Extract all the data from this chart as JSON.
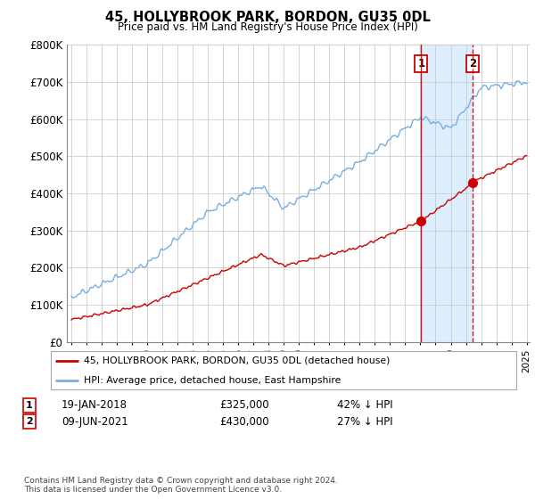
{
  "title": "45, HOLLYBROOK PARK, BORDON, GU35 0DL",
  "subtitle": "Price paid vs. HM Land Registry's House Price Index (HPI)",
  "ylim": [
    0,
    800000
  ],
  "yticks": [
    0,
    100000,
    200000,
    300000,
    400000,
    500000,
    600000,
    700000,
    800000
  ],
  "ytick_labels": [
    "£0",
    "£100K",
    "£200K",
    "£300K",
    "£400K",
    "£500K",
    "£600K",
    "£700K",
    "£800K"
  ],
  "sale1_date": 2018.05,
  "sale1_price": 325000,
  "sale1_label": "1",
  "sale2_date": 2021.44,
  "sale2_price": 430000,
  "sale2_label": "2",
  "red_line_color": "#cc0000",
  "blue_line_color": "#7aade0",
  "shade_color": "#ddeeff",
  "dashed_line_color": "#cc0000",
  "background_color": "#ffffff",
  "grid_color": "#cccccc",
  "legend_label_red": "45, HOLLYBROOK PARK, BORDON, GU35 0DL (detached house)",
  "legend_label_blue": "HPI: Average price, detached house, East Hampshire",
  "footnote": "Contains HM Land Registry data © Crown copyright and database right 2024.\nThis data is licensed under the Open Government Licence v3.0.",
  "xstart": 1995,
  "xend": 2025
}
